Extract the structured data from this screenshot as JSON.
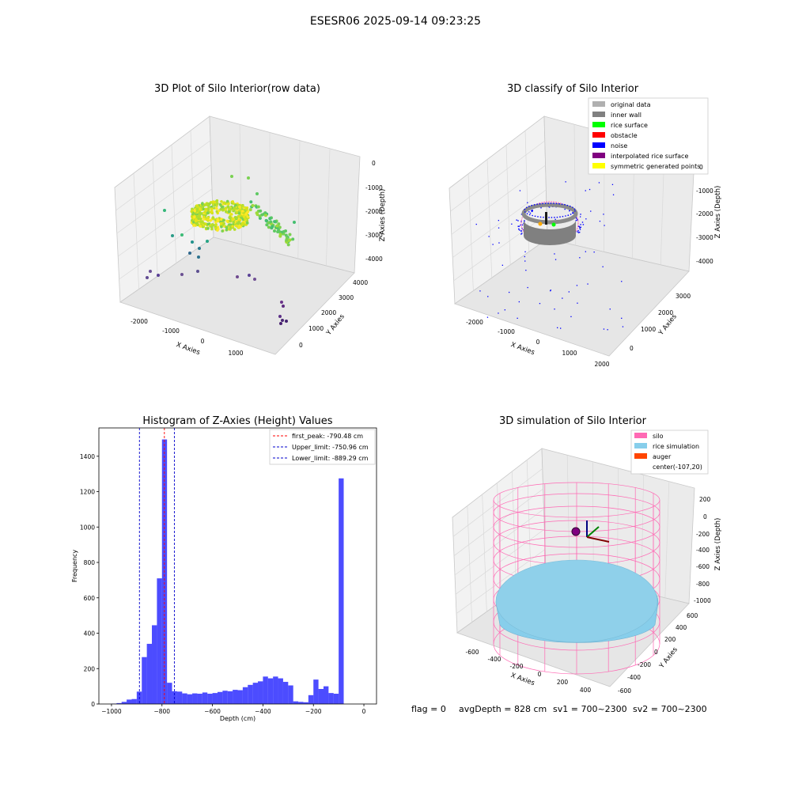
{
  "suptitle": "ESESR06 2025-09-14 09:23:25",
  "colors": {
    "raw_low": "#440154",
    "raw_mid": "#21918c",
    "raw_high": "#fde725",
    "silo_pink": "#ff69b4",
    "rice_blue": "#87ceeb",
    "auger_orange": "#ff4500",
    "hist_blue": "#0000ff",
    "peak_red": "#ff0000",
    "limit_blue": "#0000cc"
  },
  "panel_raw": {
    "title": "3D Plot of Silo Interior(row data)",
    "xlabel": "X Axies",
    "ylabel": "Y Axies",
    "zlabel": "Z Axies (Depth)",
    "xticks": [
      "-2000",
      "-1000",
      "0",
      "1000"
    ],
    "yticks": [
      "0",
      "1000",
      "2000",
      "3000",
      "4000"
    ],
    "zticks": [
      "0",
      "-1000",
      "-2000",
      "-3000",
      "-4000"
    ]
  },
  "panel_classify": {
    "title": "3D classify of Silo Interior",
    "xlabel": "X Axies",
    "ylabel": "Y Axies",
    "zlabel": "Z Axies (Depth)",
    "xticks": [
      "-2000",
      "-1000",
      "0",
      "1000",
      "2000"
    ],
    "yticks": [
      "0",
      "1000",
      "2000",
      "3000"
    ],
    "zticks": [
      "0",
      "-1000",
      "-2000",
      "-3000",
      "-4000"
    ],
    "legend": [
      {
        "label": "original data",
        "color": "#b0b0b0"
      },
      {
        "label": "inner wall",
        "color": "#808080"
      },
      {
        "label": "rice surface",
        "color": "#00ff00"
      },
      {
        "label": "obstacle",
        "color": "#ff0000"
      },
      {
        "label": "noise",
        "color": "#0000ff"
      },
      {
        "label": "interpolated rice surface",
        "color": "#800080"
      },
      {
        "label": "symmetric generated points",
        "color": "#ffff00"
      }
    ]
  },
  "panel_sim": {
    "title": "3D simulation of Silo Interior",
    "xlabel": "X Axies",
    "ylabel": "Y Axies",
    "zlabel": "Z Axies (Depth)",
    "xticks": [
      "-600",
      "-400",
      "-200",
      "0",
      "200",
      "400"
    ],
    "yticks": [
      "-600",
      "-400",
      "-200",
      "0",
      "200",
      "400",
      "600"
    ],
    "zticks": [
      "200",
      "0",
      "-200",
      "-400",
      "-600",
      "-800",
      "-1000"
    ],
    "legend": [
      {
        "label": "silo",
        "color": "#ff69b4"
      },
      {
        "label": "rice simulation",
        "color": "#87ceeb"
      },
      {
        "label": "auger",
        "color": "#ff4500"
      },
      {
        "label": "center(-107,20)",
        "color": ""
      }
    ]
  },
  "status_line": {
    "flag": "flag = 0",
    "avg": "avgDepth = 828 cm",
    "sv1": "sv1 = 700~2300",
    "sv2": "sv2 = 700~2300"
  },
  "chart_data": [
    {
      "type": "histogram",
      "title": "Histogram of Z-Axies (Height) Values",
      "xlabel": "Depth (cm)",
      "ylabel": "Frequency",
      "xlim": [
        -1050,
        50
      ],
      "ylim": [
        0,
        1560
      ],
      "xticks": [
        -1000,
        -800,
        -600,
        -400,
        -200,
        0
      ],
      "yticks": [
        0,
        200,
        400,
        600,
        800,
        1000,
        1200,
        1400
      ],
      "bin_start": -1000,
      "bin_width": 20,
      "values": [
        2,
        5,
        12,
        25,
        28,
        70,
        265,
        340,
        445,
        710,
        1495,
        120,
        72,
        70,
        60,
        55,
        60,
        58,
        65,
        58,
        62,
        68,
        75,
        72,
        80,
        78,
        95,
        108,
        120,
        128,
        155,
        145,
        155,
        145,
        125,
        105,
        15,
        12,
        10,
        50,
        138,
        85,
        100,
        62,
        58,
        1275
      ],
      "series_color": "#0000ff",
      "vlines": [
        {
          "x": -790.48,
          "label": "first_peak: -790.48 cm",
          "color": "#ff0000"
        },
        {
          "x": -750.96,
          "label": "Upper_limit: -750.96 cm",
          "color": "#0000cc"
        },
        {
          "x": -889.29,
          "label": "Lower_limit: -889.29 cm",
          "color": "#0000cc"
        }
      ],
      "legend_position": "upper right"
    }
  ]
}
